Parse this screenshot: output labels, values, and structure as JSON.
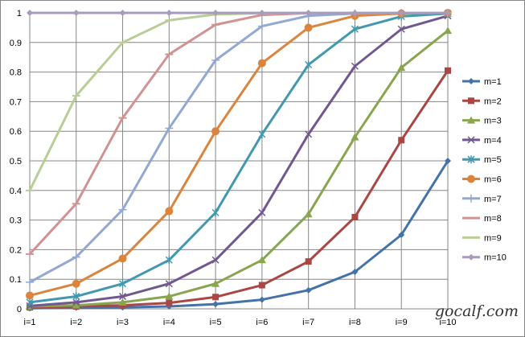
{
  "chart_data": {
    "type": "line",
    "categories": [
      "i=1",
      "i=2",
      "i=3",
      "i=4",
      "i=5",
      "i=6",
      "i=7",
      "i=8",
      "i=9",
      "i=10"
    ],
    "ylim": [
      0,
      1
    ],
    "yticks": [
      "0",
      "0.1",
      "0.2",
      "0.3",
      "0.4",
      "0.5",
      "0.6",
      "0.7",
      "0.8",
      "0.9",
      "1"
    ],
    "grid": true,
    "legend_position": "right",
    "series": [
      {
        "name": "m=1",
        "color": "#4572A7",
        "marker": "diamond",
        "values": [
          0.002,
          0.004,
          0.005,
          0.008,
          0.016,
          0.031,
          0.063,
          0.125,
          0.25,
          0.5
        ]
      },
      {
        "name": "m=2",
        "color": "#AA4643",
        "marker": "square",
        "values": [
          0.005,
          0.008,
          0.012,
          0.02,
          0.04,
          0.08,
          0.16,
          0.31,
          0.57,
          0.805
        ]
      },
      {
        "name": "m=3",
        "color": "#89A54E",
        "marker": "triangle",
        "values": [
          0.008,
          0.012,
          0.022,
          0.042,
          0.085,
          0.165,
          0.32,
          0.58,
          0.815,
          0.94
        ]
      },
      {
        "name": "m=4",
        "color": "#71588F",
        "marker": "x",
        "values": [
          0.01,
          0.022,
          0.042,
          0.085,
          0.165,
          0.325,
          0.59,
          0.82,
          0.945,
          0.99
        ]
      },
      {
        "name": "m=5",
        "color": "#4198AF",
        "marker": "star",
        "values": [
          0.022,
          0.042,
          0.085,
          0.165,
          0.325,
          0.59,
          0.825,
          0.945,
          0.988,
          0.998
        ]
      },
      {
        "name": "m=6",
        "color": "#DB843D",
        "marker": "circle",
        "values": [
          0.045,
          0.085,
          0.17,
          0.33,
          0.6,
          0.83,
          0.95,
          0.99,
          0.998,
          1.0
        ]
      },
      {
        "name": "m=7",
        "color": "#93A9CF",
        "marker": "plus",
        "values": [
          0.09,
          0.175,
          0.335,
          0.61,
          0.84,
          0.955,
          0.99,
          0.998,
          1.0,
          1.0
        ]
      },
      {
        "name": "m=8",
        "color": "#D19392",
        "marker": "dash",
        "values": [
          0.185,
          0.355,
          0.645,
          0.86,
          0.96,
          0.993,
          0.999,
          1.0,
          1.0,
          1.0
        ]
      },
      {
        "name": "m=9",
        "color": "#B9CD96",
        "marker": "dash",
        "values": [
          0.4,
          0.72,
          0.9,
          0.975,
          0.995,
          0.999,
          1.0,
          1.0,
          1.0,
          1.0
        ]
      },
      {
        "name": "m=10",
        "color": "#A99BBD",
        "marker": "diamond",
        "values": [
          1.0,
          1.0,
          1.0,
          1.0,
          1.0,
          1.0,
          1.0,
          1.0,
          1.0,
          1.0
        ]
      }
    ]
  },
  "watermark": "gocalf.com",
  "gridline_color": "#868686"
}
